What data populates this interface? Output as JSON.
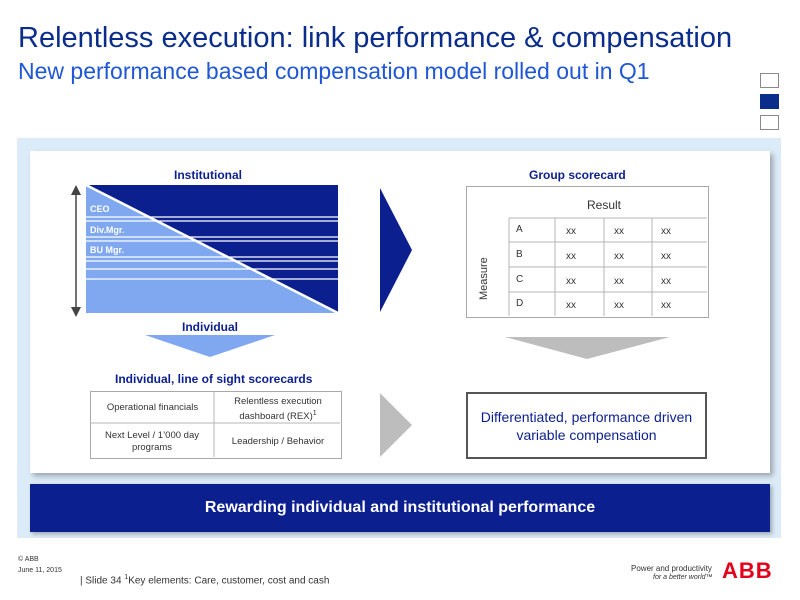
{
  "header": {
    "title": "Relentless execution: link performance & compensation",
    "subtitle": "New performance based compensation model rolled out in Q1"
  },
  "left_top": {
    "heading": "Institutional",
    "levels": [
      "CEO",
      "Div.Mgr.",
      "BU Mgr."
    ],
    "bottom_label": "Individual"
  },
  "right_top": {
    "heading": "Group scorecard",
    "column_header": "Result",
    "row_axis_label": "Measure",
    "rows": [
      {
        "label": "A",
        "cells": [
          "xx",
          "xx",
          "xx"
        ]
      },
      {
        "label": "B",
        "cells": [
          "xx",
          "xx",
          "xx"
        ]
      },
      {
        "label": "C",
        "cells": [
          "xx",
          "xx",
          "xx"
        ]
      },
      {
        "label": "D",
        "cells": [
          "xx",
          "xx",
          "xx"
        ]
      }
    ]
  },
  "left_bottom": {
    "heading": "Individual, line of sight scorecards",
    "cells": [
      {
        "text": "Operational financials"
      },
      {
        "text": "Relentless execution dashboard (REX)",
        "sup": "1"
      },
      {
        "text": "Next Level / 1’000 day programs"
      },
      {
        "text": "Leadership / Behavior"
      }
    ]
  },
  "right_bottom": {
    "result_text": "Differentiated, performance driven variable compensation"
  },
  "banner": {
    "text": "Rewarding individual and institutional performance"
  },
  "footer": {
    "copyright": "© ABB",
    "date": "June 11, 2015",
    "slide": "| Slide 34",
    "footnote_marker": "1",
    "footnote": "Key elements: Care, customer, cost and cash",
    "slogan_line1": "Power and productivity",
    "slogan_line2": "for a better world™",
    "logo": "ABB"
  },
  "colors": {
    "dark_blue": "#0c1f8f",
    "title_blue": "#0a2d8c",
    "subtitle_blue": "#1f57d6",
    "light_blue_fill": "#7fa8f0",
    "panel_bg": "#dcebf8",
    "gray_arrow": "#bdbdbd",
    "abb_red": "#e2001a"
  }
}
